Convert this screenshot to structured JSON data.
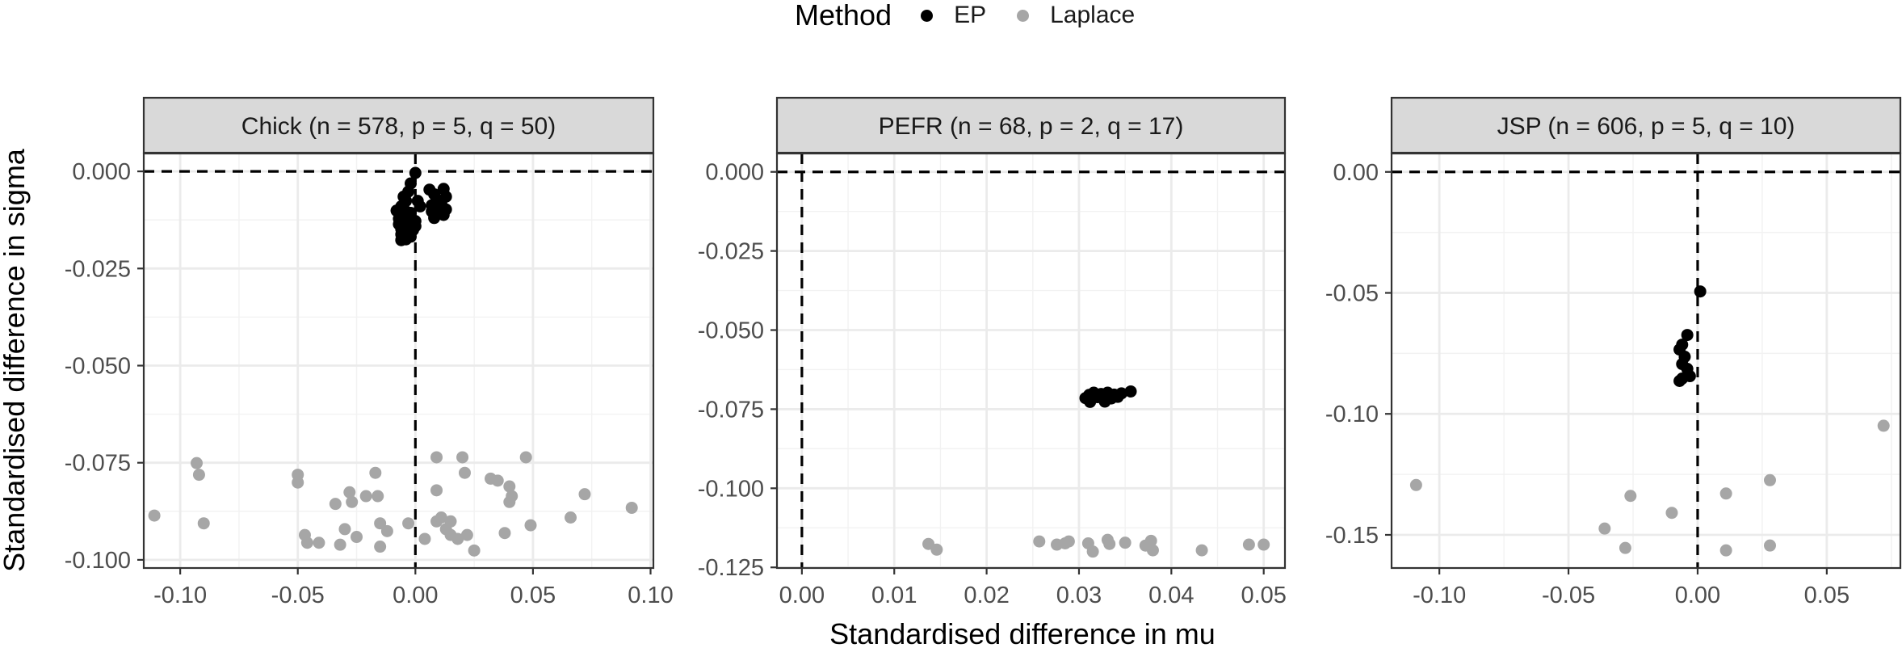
{
  "legend": {
    "title": "Method",
    "items": [
      {
        "label": "EP",
        "color": "#000000"
      },
      {
        "label": "Laplace",
        "color": "#a6a6a6"
      }
    ]
  },
  "axes": {
    "xlabel": "Standardised difference in mu",
    "ylabel": "Standardised difference in sigma"
  },
  "chart_data": [
    {
      "type": "scatter",
      "title": "Chick (n = 578, p = 5, q = 50)",
      "xlim": [
        -0.1155,
        0.1012
      ],
      "ylim": [
        -0.1021,
        0.0046
      ],
      "xticks": [
        -0.1,
        -0.05,
        0.0,
        0.05,
        0.1
      ],
      "xtick_labels": [
        "-0.10",
        "-0.05",
        "0.00",
        "0.05",
        "0.10"
      ],
      "yticks": [
        0.0,
        -0.025,
        -0.05,
        -0.075,
        -0.1
      ],
      "ytick_labels": [
        "0.000",
        "-0.025",
        "-0.050",
        "-0.075",
        "-0.100"
      ],
      "series": [
        {
          "name": "EP",
          "color": "#000000",
          "points": [
            [
              0.0,
              -0.0004
            ],
            [
              -0.002,
              -0.0031
            ],
            [
              -0.003,
              -0.0052
            ],
            [
              -0.005,
              -0.0065
            ],
            [
              -0.004,
              -0.0076
            ],
            [
              0.001,
              -0.0076
            ],
            [
              0.002,
              -0.009
            ],
            [
              -0.006,
              -0.009
            ],
            [
              -0.008,
              -0.0101
            ],
            [
              -0.004,
              -0.0103
            ],
            [
              -0.002,
              -0.0107
            ],
            [
              -0.006,
              -0.0112
            ],
            [
              -0.005,
              -0.0118
            ],
            [
              -0.007,
              -0.0122
            ],
            [
              -0.003,
              -0.0124
            ],
            [
              0.0,
              -0.0128
            ],
            [
              -0.006,
              -0.0131
            ],
            [
              -0.004,
              -0.0134
            ],
            [
              -0.007,
              -0.0136
            ],
            [
              -0.002,
              -0.0138
            ],
            [
              0.0,
              -0.0141
            ],
            [
              -0.005,
              -0.0143
            ],
            [
              -0.003,
              -0.0147
            ],
            [
              -0.006,
              -0.0149
            ],
            [
              -0.001,
              -0.0151
            ],
            [
              -0.004,
              -0.0155
            ],
            [
              -0.006,
              -0.0162
            ],
            [
              -0.002,
              -0.0168
            ],
            [
              -0.004,
              -0.0175
            ],
            [
              -0.006,
              -0.0177
            ],
            [
              0.006,
              -0.0047
            ],
            [
              0.008,
              -0.0059
            ],
            [
              0.012,
              -0.0045
            ],
            [
              0.009,
              -0.0073
            ],
            [
              0.013,
              -0.0065
            ],
            [
              0.007,
              -0.0087
            ],
            [
              0.011,
              -0.0082
            ],
            [
              0.01,
              -0.0094
            ],
            [
              0.013,
              -0.0098
            ],
            [
              0.007,
              -0.0103
            ],
            [
              0.01,
              -0.0108
            ],
            [
              0.012,
              -0.0112
            ],
            [
              0.008,
              -0.012
            ],
            [
              0.009,
              -0.0104
            ]
          ]
        },
        {
          "name": "Laplace",
          "color": "#a6a6a6",
          "points": [
            [
              -0.111,
              -0.0886
            ],
            [
              -0.093,
              -0.0751
            ],
            [
              -0.092,
              -0.0781
            ],
            [
              -0.09,
              -0.0906
            ],
            [
              -0.05,
              -0.0781
            ],
            [
              -0.05,
              -0.0801
            ],
            [
              -0.047,
              -0.0936
            ],
            [
              -0.046,
              -0.0956
            ],
            [
              -0.041,
              -0.0956
            ],
            [
              -0.034,
              -0.0856
            ],
            [
              -0.032,
              -0.0961
            ],
            [
              -0.03,
              -0.0921
            ],
            [
              -0.028,
              -0.0826
            ],
            [
              -0.027,
              -0.0851
            ],
            [
              -0.025,
              -0.0941
            ],
            [
              -0.021,
              -0.0836
            ],
            [
              -0.017,
              -0.0776
            ],
            [
              -0.016,
              -0.0836
            ],
            [
              -0.015,
              -0.0906
            ],
            [
              -0.015,
              -0.0966
            ],
            [
              -0.012,
              -0.0926
            ],
            [
              -0.003,
              -0.0906
            ],
            [
              0.004,
              -0.0946
            ],
            [
              0.009,
              -0.0736
            ],
            [
              0.009,
              -0.0821
            ],
            [
              0.009,
              -0.0901
            ],
            [
              0.011,
              -0.0891
            ],
            [
              0.013,
              -0.0921
            ],
            [
              0.015,
              -0.0936
            ],
            [
              0.015,
              -0.0901
            ],
            [
              0.018,
              -0.0946
            ],
            [
              0.02,
              -0.0736
            ],
            [
              0.021,
              -0.0776
            ],
            [
              0.022,
              -0.0936
            ],
            [
              0.025,
              -0.0976
            ],
            [
              0.032,
              -0.0791
            ],
            [
              0.035,
              -0.0796
            ],
            [
              0.038,
              -0.0931
            ],
            [
              0.04,
              -0.0851
            ],
            [
              0.04,
              -0.0811
            ],
            [
              0.041,
              -0.0836
            ],
            [
              0.047,
              -0.0736
            ],
            [
              0.049,
              -0.0911
            ],
            [
              0.066,
              -0.0891
            ],
            [
              0.072,
              -0.0831
            ],
            [
              0.092,
              -0.0866
            ]
          ]
        }
      ]
    },
    {
      "type": "scatter",
      "title": "PEFR (n = 68, p = 2, q = 17)",
      "xlim": [
        -0.0027,
        0.0523
      ],
      "ylim": [
        -0.1252,
        0.0058
      ],
      "xticks": [
        0.0,
        0.01,
        0.02,
        0.03,
        0.04,
        0.05
      ],
      "xtick_labels": [
        "0.00",
        "0.01",
        "0.02",
        "0.03",
        "0.04",
        "0.05"
      ],
      "yticks": [
        0.0,
        -0.025,
        -0.05,
        -0.075,
        -0.1,
        -0.125
      ],
      "ytick_labels": [
        "0.000",
        "-0.025",
        "-0.050",
        "-0.075",
        "-0.100",
        "-0.125"
      ],
      "series": [
        {
          "name": "EP",
          "color": "#000000",
          "points": [
            [
              0.0307,
              -0.0715
            ],
            [
              0.0311,
              -0.0705
            ],
            [
              0.0316,
              -0.0698
            ],
            [
              0.032,
              -0.0712
            ],
            [
              0.0324,
              -0.0702
            ],
            [
              0.0328,
              -0.0726
            ],
            [
              0.0331,
              -0.0698
            ],
            [
              0.0335,
              -0.0716
            ],
            [
              0.0338,
              -0.0704
            ],
            [
              0.0342,
              -0.0711
            ],
            [
              0.0346,
              -0.07
            ],
            [
              0.0356,
              -0.0694
            ],
            [
              0.0312,
              -0.0727
            ],
            [
              0.033,
              -0.0713
            ]
          ]
        },
        {
          "name": "Laplace",
          "color": "#a6a6a6",
          "points": [
            [
              0.0137,
              -0.1176
            ],
            [
              0.0146,
              -0.1194
            ],
            [
              0.0257,
              -0.1168
            ],
            [
              0.0276,
              -0.1178
            ],
            [
              0.0285,
              -0.1174
            ],
            [
              0.0289,
              -0.1168
            ],
            [
              0.031,
              -0.1174
            ],
            [
              0.0315,
              -0.12
            ],
            [
              0.0331,
              -0.1163
            ],
            [
              0.0333,
              -0.1176
            ],
            [
              0.035,
              -0.1172
            ],
            [
              0.0372,
              -0.1181
            ],
            [
              0.0378,
              -0.1166
            ],
            [
              0.038,
              -0.1196
            ],
            [
              0.0433,
              -0.1196
            ],
            [
              0.0484,
              -0.1178
            ],
            [
              0.05,
              -0.1178
            ]
          ]
        }
      ]
    },
    {
      "type": "scatter",
      "title": "JSP (n = 606, p = 5, q = 10)",
      "xlim": [
        -0.1185,
        0.0785
      ],
      "ylim": [
        -0.1637,
        0.0076
      ],
      "xticks": [
        -0.1,
        -0.05,
        0.0,
        0.05
      ],
      "xtick_labels": [
        "-0.10",
        "-0.05",
        "0.00",
        "0.05"
      ],
      "yticks": [
        0.0,
        -0.05,
        -0.1,
        -0.15
      ],
      "ytick_labels": [
        "0.00",
        "-0.05",
        "-0.10",
        "-0.15"
      ],
      "series": [
        {
          "name": "EP",
          "color": "#000000",
          "points": [
            [
              0.001,
              -0.0494
            ],
            [
              -0.004,
              -0.0674
            ],
            [
              -0.006,
              -0.0714
            ],
            [
              -0.007,
              -0.0734
            ],
            [
              -0.005,
              -0.0764
            ],
            [
              -0.006,
              -0.0794
            ],
            [
              -0.004,
              -0.0814
            ],
            [
              -0.003,
              -0.0844
            ],
            [
              -0.006,
              -0.0854
            ],
            [
              -0.007,
              -0.0864
            ]
          ]
        },
        {
          "name": "Laplace",
          "color": "#a6a6a6",
          "points": [
            [
              -0.109,
              -0.1294
            ],
            [
              -0.036,
              -0.1474
            ],
            [
              -0.028,
              -0.1554
            ],
            [
              -0.026,
              -0.1339
            ],
            [
              -0.01,
              -0.1409
            ],
            [
              0.011,
              -0.1329
            ],
            [
              0.011,
              -0.1564
            ],
            [
              0.028,
              -0.1274
            ],
            [
              0.028,
              -0.1544
            ],
            [
              0.072,
              -0.1049
            ]
          ]
        }
      ]
    }
  ]
}
